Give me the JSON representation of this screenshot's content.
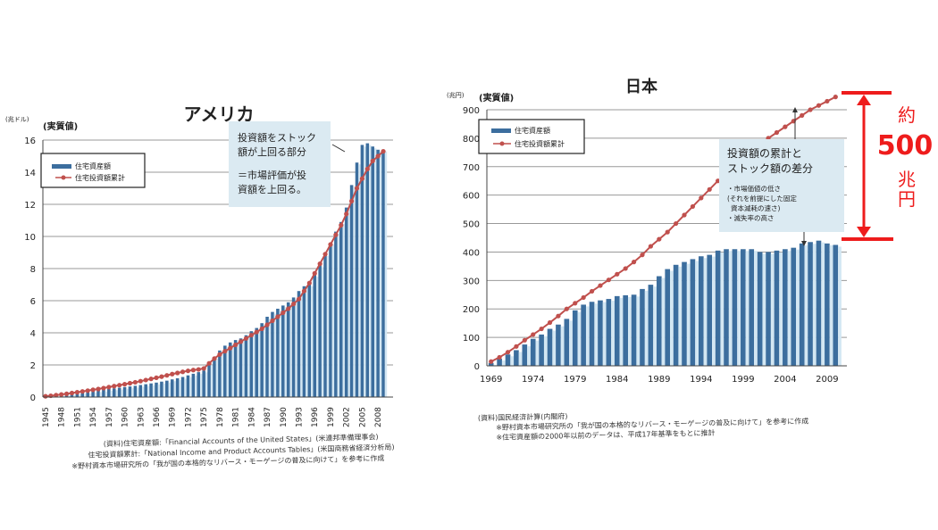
{
  "chart_data": [
    {
      "type": "bar+line",
      "title": "アメリカ",
      "unit_label": "(兆ドル)",
      "subtitle": "(実質値)",
      "ylim": [
        0,
        16
      ],
      "yticks": [
        0,
        2,
        4,
        6,
        8,
        10,
        12,
        14,
        16
      ],
      "x_tick_labels": [
        "1945",
        "1948",
        "1951",
        "1954",
        "1957",
        "1960",
        "1963",
        "1966",
        "1969",
        "1972",
        "1975",
        "1978",
        "1981",
        "1984",
        "1987",
        "1990",
        "1993",
        "1996",
        "1999",
        "2002",
        "2005",
        "2008"
      ],
      "grid": true,
      "legend_placement": "top-left",
      "x_start": 1945,
      "series": [
        {
          "name": "住宅資産額",
          "kind": "bar",
          "color": "#3c6e9e",
          "values": [
            0.1,
            0.12,
            0.15,
            0.18,
            0.21,
            0.25,
            0.28,
            0.31,
            0.35,
            0.38,
            0.42,
            0.46,
            0.5,
            0.54,
            0.58,
            0.62,
            0.66,
            0.7,
            0.75,
            0.8,
            0.85,
            0.9,
            0.96,
            1.02,
            1.1,
            1.17,
            1.25,
            1.35,
            1.45,
            1.55,
            1.65,
            2.1,
            2.5,
            2.9,
            3.2,
            3.4,
            3.55,
            3.65,
            3.85,
            4.1,
            4.3,
            4.6,
            5.0,
            5.3,
            5.5,
            5.7,
            5.9,
            6.2,
            6.6,
            6.9,
            7.0,
            7.6,
            8.2,
            8.9,
            9.6,
            10.3,
            10.9,
            11.8,
            13.2,
            14.6,
            15.7,
            15.8,
            15.6,
            15.4,
            15.4
          ]
        },
        {
          "name": "住宅投資額累計",
          "kind": "line",
          "color": "#c0504d",
          "values": [
            0.05,
            0.08,
            0.12,
            0.16,
            0.2,
            0.25,
            0.3,
            0.35,
            0.4,
            0.45,
            0.5,
            0.56,
            0.62,
            0.68,
            0.74,
            0.8,
            0.86,
            0.92,
            0.99,
            1.06,
            1.13,
            1.2,
            1.27,
            1.35,
            1.43,
            1.5,
            1.57,
            1.63,
            1.68,
            1.72,
            1.78,
            2.1,
            2.4,
            2.65,
            2.85,
            3.05,
            3.25,
            3.45,
            3.65,
            3.85,
            4.05,
            4.25,
            4.5,
            4.75,
            5.0,
            5.25,
            5.5,
            5.8,
            6.1,
            6.6,
            7.1,
            7.7,
            8.3,
            8.9,
            9.5,
            10.1,
            10.7,
            11.4,
            12.2,
            13.0,
            13.6,
            14.2,
            14.7,
            15.0,
            15.3
          ]
        }
      ],
      "annotation": [
        "投資額をストック",
        "額が上回る部分",
        "＝市場評価が投",
        "資額を上回る。"
      ],
      "notes": [
        "(資料)住宅資産額:「Financial Accounts of the United States」(米連邦準備理事会)",
        "住宅投資額累計:「National Income and Product Accounts Tables」(米国商務省経済分析局)",
        "※野村資本市場研究所の「我が国の本格的なリバース・モーゲージの普及に向けて」を参考に作成"
      ]
    },
    {
      "type": "bar+line",
      "title": "日本",
      "unit_label": "(兆円)",
      "subtitle": "(実質値)",
      "ylim": [
        0,
        900
      ],
      "yticks": [
        0,
        100,
        200,
        300,
        400,
        500,
        600,
        700,
        800,
        900
      ],
      "x_tick_labels": [
        "1969",
        "1974",
        "1979",
        "1984",
        "1989",
        "1994",
        "1999",
        "2004",
        "2009"
      ],
      "grid": true,
      "legend_placement": "top-left",
      "x_start": 1969,
      "series": [
        {
          "name": "住宅資産額",
          "kind": "bar",
          "color": "#3c6e9e",
          "values": [
            10,
            25,
            40,
            55,
            75,
            95,
            110,
            130,
            145,
            165,
            195,
            215,
            225,
            230,
            235,
            245,
            248,
            250,
            270,
            285,
            315,
            340,
            355,
            365,
            375,
            385,
            390,
            405,
            410,
            410,
            410,
            410,
            400,
            400,
            405,
            410,
            415,
            430,
            435,
            440,
            430,
            425
          ]
        },
        {
          "name": "住宅投資額累計",
          "kind": "line",
          "color": "#c0504d",
          "values": [
            15,
            30,
            48,
            68,
            90,
            110,
            130,
            152,
            175,
            200,
            220,
            240,
            262,
            282,
            302,
            322,
            342,
            365,
            390,
            420,
            445,
            470,
            500,
            530,
            560,
            590,
            620,
            650,
            675,
            700,
            725,
            750,
            775,
            800,
            820,
            840,
            860,
            880,
            900,
            915,
            930,
            945
          ]
        }
      ],
      "annotation": [
        "投資額の累計と",
        "ストック額の差分"
      ],
      "annotation_bullets": [
        "・市場価値の低さ",
        "(それを前提にした固定",
        "資本減耗の速さ)",
        "・滅失率の高さ"
      ],
      "gap_callout": {
        "prefix": "約",
        "value": "500",
        "unit": "兆円",
        "color": "#ee1c1c"
      },
      "notes": [
        "(資料)国民経済計算(内閣府)",
        "※野村資本市場研究所の「我が国の本格的なリバース・モーゲージの普及に向けて」を参考に作成",
        "※住宅資産額の2000年以前のデータは、平成17年基準をもとに推計"
      ]
    }
  ]
}
